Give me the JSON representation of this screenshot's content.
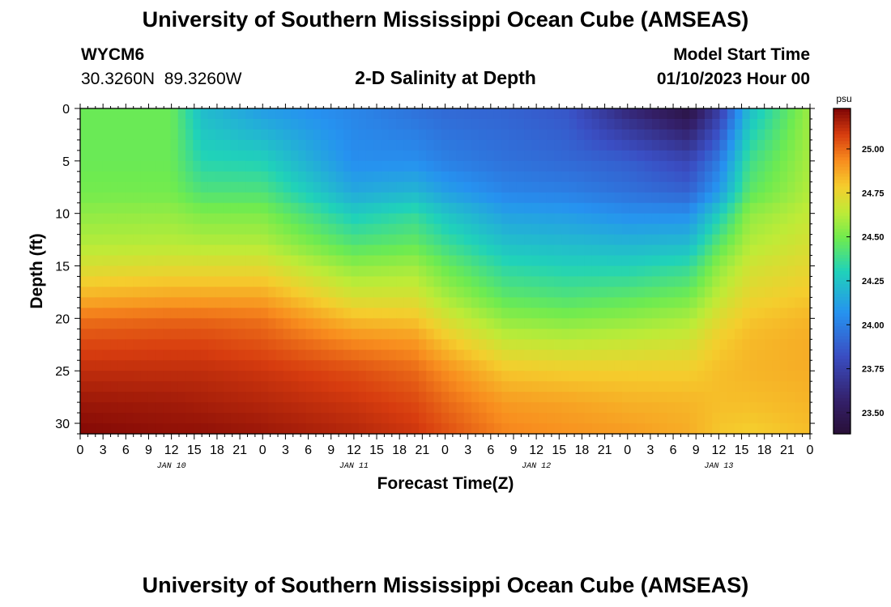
{
  "header": {
    "title": "University of Southern Mississippi Ocean Cube (AMSEAS)",
    "station_id": "WYCM6",
    "station_coords": "30.3260N  89.3260W",
    "subtitle": "2-D Salinity at Depth",
    "model_start_label": "Model Start Time",
    "model_start_value": "01/10/2023 Hour 00"
  },
  "footer": {
    "title": "University of Southern Mississippi Ocean Cube (AMSEAS)"
  },
  "chart_data": {
    "type": "heatmap",
    "title": "2-D Salinity at Depth",
    "xlabel": "Forecast Time(Z)",
    "ylabel": "Depth (ft)",
    "x_hours": [
      0,
      96
    ],
    "x_tick_labels": [
      "0",
      "3",
      "6",
      "9",
      "12",
      "15",
      "18",
      "21",
      "0",
      "3",
      "6",
      "9",
      "12",
      "15",
      "18",
      "21",
      "0",
      "3",
      "6",
      "9",
      "12",
      "15",
      "18",
      "21",
      "0",
      "3",
      "6",
      "9",
      "12",
      "15",
      "18",
      "21",
      "0"
    ],
    "date_labels": [
      {
        "label": "JAN 10",
        "hour": 12
      },
      {
        "label": "JAN 11",
        "hour": 36
      },
      {
        "label": "JAN 12",
        "hour": 60
      },
      {
        "label": "JAN 13",
        "hour": 84
      }
    ],
    "ylim": [
      0,
      31
    ],
    "y_ticks": [
      0,
      5,
      10,
      15,
      20,
      25,
      30
    ],
    "colorbar": {
      "units": "psu",
      "range": [
        23.38,
        25.23
      ],
      "ticks": [
        "23.50",
        "23.75",
        "24.00",
        "24.25",
        "24.50",
        "24.75",
        "25.00"
      ]
    },
    "profile_hours": [
      0,
      12,
      16,
      24,
      36,
      44,
      48,
      56,
      64,
      72,
      80,
      84,
      88,
      96
    ],
    "profile_depths": [
      0,
      5,
      8,
      10,
      13,
      15,
      18,
      20,
      22,
      25,
      28,
      31
    ],
    "values": [
      [
        24.48,
        24.48,
        24.5,
        24.55,
        24.62,
        24.7,
        24.85,
        24.98,
        25.05,
        25.12,
        25.18,
        25.22
      ],
      [
        24.48,
        24.48,
        24.5,
        24.56,
        24.63,
        24.72,
        24.88,
        25.0,
        25.06,
        25.12,
        25.17,
        25.2
      ],
      [
        24.22,
        24.32,
        24.42,
        24.52,
        24.62,
        24.72,
        24.88,
        25.0,
        25.06,
        25.12,
        25.16,
        25.2
      ],
      [
        24.1,
        24.3,
        24.42,
        24.52,
        24.62,
        24.72,
        24.88,
        24.98,
        25.03,
        25.1,
        25.14,
        25.18
      ],
      [
        24.02,
        24.05,
        24.15,
        24.28,
        24.43,
        24.55,
        24.7,
        24.82,
        24.93,
        25.05,
        25.1,
        25.14
      ],
      [
        23.95,
        24.05,
        24.2,
        24.35,
        24.47,
        24.58,
        24.7,
        24.8,
        24.9,
        25.0,
        25.06,
        25.1
      ],
      [
        23.92,
        24.0,
        24.12,
        24.25,
        24.38,
        24.48,
        24.6,
        24.7,
        24.8,
        24.93,
        25.0,
        25.05
      ],
      [
        23.9,
        23.95,
        24.02,
        24.12,
        24.24,
        24.33,
        24.45,
        24.55,
        24.65,
        24.8,
        24.9,
        24.95
      ],
      [
        23.85,
        23.92,
        24.0,
        24.1,
        24.22,
        24.3,
        24.42,
        24.52,
        24.63,
        24.78,
        24.88,
        24.92
      ],
      [
        23.6,
        23.88,
        23.95,
        24.05,
        24.2,
        24.3,
        24.45,
        24.55,
        24.65,
        24.78,
        24.85,
        24.9
      ],
      [
        23.42,
        23.78,
        23.9,
        24.05,
        24.22,
        24.35,
        24.5,
        24.6,
        24.68,
        24.78,
        24.84,
        24.86
      ],
      [
        23.72,
        23.98,
        24.1,
        24.28,
        24.45,
        24.55,
        24.65,
        24.72,
        24.78,
        24.82,
        24.82,
        24.8
      ],
      [
        24.22,
        24.38,
        24.45,
        24.55,
        24.62,
        24.68,
        24.75,
        24.8,
        24.83,
        24.84,
        24.82,
        24.78
      ],
      [
        24.58,
        24.6,
        24.62,
        24.65,
        24.7,
        24.74,
        24.8,
        24.84,
        24.86,
        24.86,
        24.84,
        24.82
      ]
    ]
  },
  "colors": {
    "background": "#ffffff",
    "axis": "#000000"
  }
}
